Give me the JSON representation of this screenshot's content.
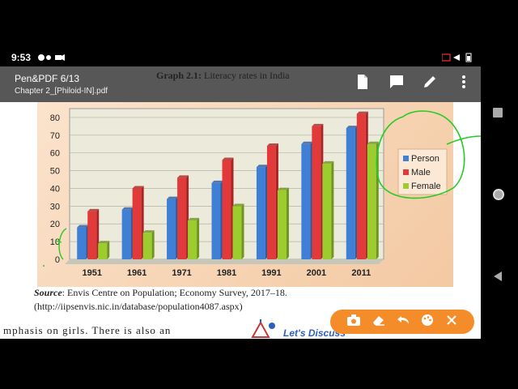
{
  "status": {
    "time": "9:53"
  },
  "app": {
    "title": "Pen&PDF 6/13",
    "file": "Chapter 2_[Philoid-IN].pdf"
  },
  "document": {
    "graph_label": "Graph 2.1:",
    "graph_title": "Literacy  rates in India",
    "source_label": "Source",
    "source_text": ": Envis Centre on Population; Economy Survey, 2017–18.",
    "source_url": "(http://iipsenvis.nic.in/database/population4087.aspx)",
    "body_text": "mphasis on girls. There is also an",
    "discuss_label": "Let's Discuss"
  },
  "icons": {
    "appbar": [
      "document-icon",
      "comment-icon",
      "pen-icon",
      "more-vert-icon"
    ],
    "toolbar": [
      "camera-icon",
      "eraser-icon",
      "undo-icon",
      "palette-icon",
      "close-icon"
    ]
  },
  "colors": {
    "toolbar": "#f58c2a",
    "person": "#3f7fd6",
    "male": "#e23a3a",
    "female": "#9ccc2e",
    "annotation": "#22cc22"
  },
  "chart_data": {
    "type": "bar",
    "categories": [
      "1951",
      "1961",
      "1971",
      "1981",
      "1991",
      "2001",
      "2011"
    ],
    "series": [
      {
        "name": "Person",
        "values": [
          18,
          28,
          34,
          43,
          52,
          65,
          74
        ]
      },
      {
        "name": "Male",
        "values": [
          27,
          40,
          46,
          56,
          64,
          75,
          82
        ]
      },
      {
        "name": "Female",
        "values": [
          9,
          15,
          22,
          30,
          39,
          54,
          65
        ]
      }
    ],
    "yticks": [
      0,
      10,
      20,
      30,
      40,
      50,
      60,
      70,
      80
    ],
    "ylim": [
      0,
      85
    ],
    "legend": "right",
    "grid": true
  }
}
